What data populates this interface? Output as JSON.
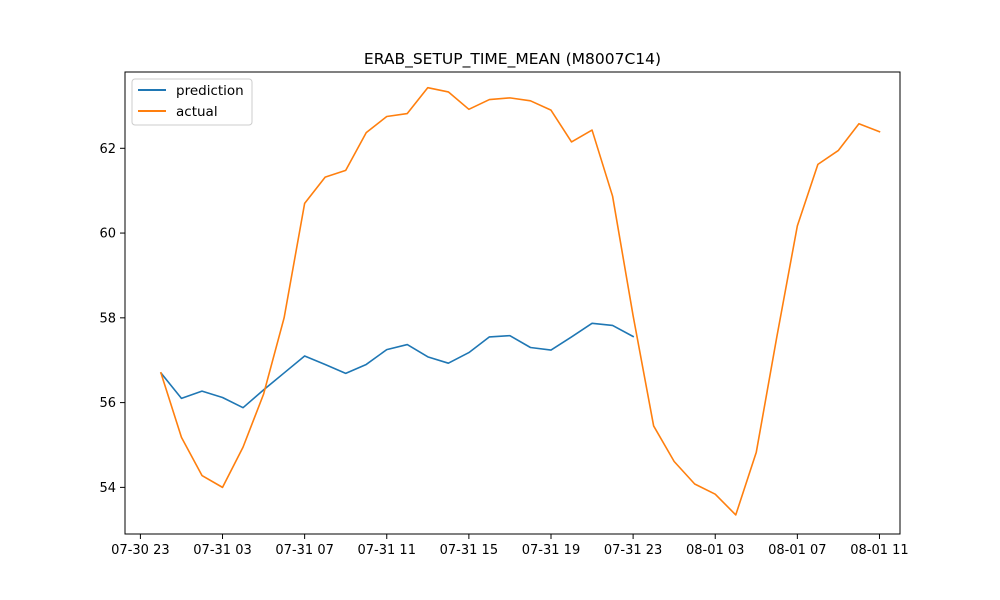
{
  "chart_data": {
    "type": "line",
    "title": "ERAB_SETUP_TIME_MEAN (M8007C14)",
    "xlabel": "",
    "ylabel": "",
    "x_ticks": [
      "07-30 23",
      "07-31 03",
      "07-31 07",
      "07-31 11",
      "07-31 15",
      "07-31 19",
      "07-31 23",
      "08-01 03",
      "08-01 07",
      "08-01 11"
    ],
    "y_ticks": [
      54,
      56,
      58,
      60,
      62
    ],
    "xlim": [
      "07-30 22:15",
      "08-01 12:00"
    ],
    "ylim": [
      52.9,
      63.8
    ],
    "grid": false,
    "legend": "top-left",
    "series": [
      {
        "name": "prediction",
        "color": "#1f77b4",
        "x": [
          "07-31 00",
          "07-31 01",
          "07-31 02",
          "07-31 03",
          "07-31 04",
          "07-31 05",
          "07-31 06",
          "07-31 07",
          "07-31 08",
          "07-31 09",
          "07-31 10",
          "07-31 11",
          "07-31 12",
          "07-31 13",
          "07-31 14",
          "07-31 15",
          "07-31 16",
          "07-31 17",
          "07-31 18",
          "07-31 19",
          "07-31 20",
          "07-31 21",
          "07-31 22",
          "07-31 23"
        ],
        "values": [
          56.7,
          56.1,
          56.27,
          56.12,
          55.88,
          56.3,
          56.7,
          57.1,
          56.9,
          56.69,
          56.9,
          57.25,
          57.37,
          57.08,
          56.93,
          57.18,
          57.55,
          57.58,
          57.3,
          57.24,
          57.55,
          57.87,
          57.82,
          57.56
        ]
      },
      {
        "name": "actual",
        "color": "#ff7f0e",
        "x": [
          "07-31 00",
          "07-31 01",
          "07-31 02",
          "07-31 03",
          "07-31 04",
          "07-31 05",
          "07-31 06",
          "07-31 07",
          "07-31 08",
          "07-31 09",
          "07-31 10",
          "07-31 11",
          "07-31 12",
          "07-31 13",
          "07-31 14",
          "07-31 15",
          "07-31 16",
          "07-31 17",
          "07-31 18",
          "07-31 19",
          "07-31 20",
          "07-31 21",
          "07-31 22",
          "07-31 23",
          "08-01 00",
          "08-01 01",
          "08-01 02",
          "08-01 03",
          "08-01 04",
          "08-01 05",
          "08-01 06",
          "08-01 07",
          "08-01 08",
          "08-01 09",
          "08-01 10",
          "08-01 11"
        ],
        "values": [
          56.7,
          55.18,
          54.28,
          54.0,
          54.95,
          56.2,
          58.0,
          60.7,
          61.32,
          61.48,
          62.37,
          62.75,
          62.82,
          63.43,
          63.33,
          62.92,
          63.15,
          63.19,
          63.12,
          62.9,
          62.15,
          62.43,
          60.87,
          58.05,
          55.45,
          54.61,
          54.08,
          53.84,
          53.35,
          54.83,
          57.55,
          60.17,
          61.62,
          61.95,
          62.58,
          62.39
        ]
      }
    ]
  }
}
